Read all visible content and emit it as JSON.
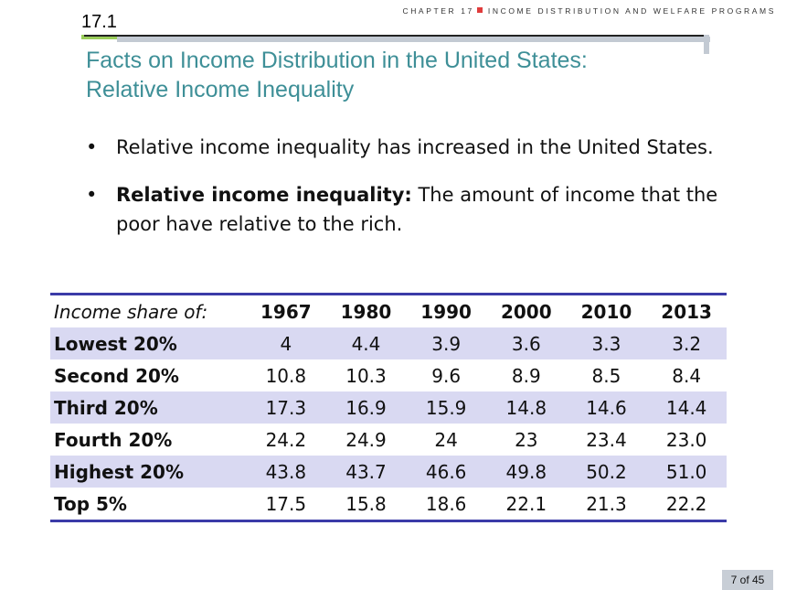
{
  "header": {
    "chapter_label": "CHAPTER 17",
    "chapter_title": "INCOME DISTRIBUTION AND WELFARE PROGRAMS",
    "section_number": "17.1"
  },
  "title": {
    "line1": "Facts on Income Distribution in the United States:",
    "line2": "Relative Income Inequality"
  },
  "bullets": [
    {
      "bold": "",
      "text": "Relative income inequality has increased in the United States."
    },
    {
      "bold": "Relative income inequality:",
      "text": " The amount of income that the poor have relative to the rich."
    }
  ],
  "table": {
    "header_label": "Income share of:",
    "years": [
      "1967",
      "1980",
      "1990",
      "2000",
      "2010",
      "2013"
    ],
    "rows": [
      {
        "label": "Lowest 20%",
        "values": [
          "4",
          "4.4",
          "3.9",
          "3.6",
          "3.3",
          "3.2"
        ]
      },
      {
        "label": "Second 20%",
        "values": [
          "10.8",
          "10.3",
          "9.6",
          "8.9",
          "8.5",
          "8.4"
        ]
      },
      {
        "label": "Third 20%",
        "values": [
          "17.3",
          "16.9",
          "15.9",
          "14.8",
          "14.6",
          "14.4"
        ]
      },
      {
        "label": "Fourth 20%",
        "values": [
          "24.2",
          "24.9",
          "24",
          "23",
          "23.4",
          "23.0"
        ]
      },
      {
        "label": "Highest 20%",
        "values": [
          "43.8",
          "43.7",
          "46.6",
          "49.8",
          "50.2",
          "51.0"
        ]
      },
      {
        "label": "Top 5%",
        "values": [
          "17.5",
          "15.8",
          "18.6",
          "22.1",
          "21.3",
          "22.2"
        ]
      }
    ]
  },
  "footer": {
    "page_indicator": "7 of 45"
  },
  "colors": {
    "title": "#3e8f97",
    "table_shade": "#d9d9f2",
    "table_rule": "#3b3ba8",
    "section_accent": "#9acd5a",
    "chapter_square": "#e03c3c"
  }
}
